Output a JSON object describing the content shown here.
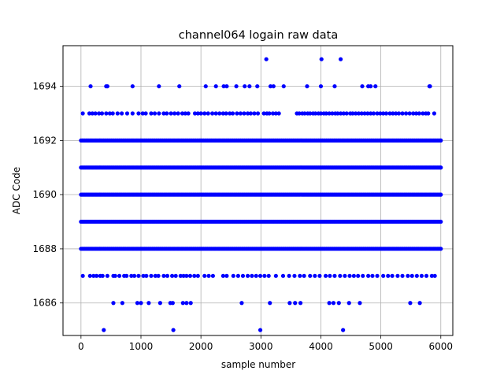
{
  "chart_data": {
    "type": "scatter",
    "title": "channel064 logain raw data",
    "xlabel": "sample number",
    "ylabel": "ADC Code",
    "xlim": [
      -300,
      6200
    ],
    "ylim": [
      1684.8,
      1695.5
    ],
    "xticks": [
      0,
      1000,
      2000,
      3000,
      4000,
      5000,
      6000
    ],
    "xtick_labels": [
      "0",
      "1000",
      "2000",
      "3000",
      "4000",
      "5000",
      "6000"
    ],
    "yticks": [
      1686,
      1688,
      1690,
      1692,
      1694
    ],
    "ytick_labels": [
      "1686",
      "1688",
      "1690",
      "1692",
      "1694"
    ],
    "grid": true,
    "marker_color": "#0000ff",
    "series": [
      {
        "points": [
          {
            "y": 1685,
            "x": [
              380,
              1540,
              2990,
              4370
            ]
          },
          {
            "y": 1686,
            "x": [
              540,
              690,
              940,
              1000,
              1130,
              1320,
              1490,
              1530,
              1700,
              1760,
              1830,
              2680,
              3150,
              3480,
              3570,
              3660,
              4140,
              4210,
              4300,
              4470,
              4650,
              5490,
              5650
            ]
          },
          {
            "y": 1687,
            "x": [
              30,
              150,
              210,
              260,
              320,
              360,
              440,
              540,
              570,
              640,
              720,
              760,
              840,
              890,
              960,
              1040,
              1090,
              1170,
              1240,
              1290,
              1380,
              1440,
              1520,
              1580,
              1660,
              1710,
              1760,
              1820,
              1890,
              1950,
              2060,
              2130,
              2200,
              2370,
              2430,
              2540,
              2620,
              2700,
              2780,
              2850,
              2920,
              2990,
              3060,
              3130,
              3250,
              3370,
              3470,
              3560,
              3650,
              3720,
              3820,
              3900,
              3980,
              4080,
              4150,
              4230,
              4320,
              4400,
              4480,
              4550,
              4620,
              4700,
              4790,
              4860,
              4940,
              5040,
              5120,
              5190,
              5280,
              5360,
              5450,
              5520,
              5600,
              5680,
              5760,
              5850,
              5900
            ]
          },
          {
            "y": 1688,
            "x": [
              0,
              6000
            ],
            "dense": true
          },
          {
            "y": 1689,
            "x": [
              0,
              6000
            ],
            "dense": true
          },
          {
            "y": 1690,
            "x": [
              0,
              6000
            ],
            "dense": true
          },
          {
            "y": 1691,
            "x": [
              0,
              6000
            ],
            "dense": true
          },
          {
            "y": 1692,
            "x": [
              0,
              6000
            ],
            "dense": true
          },
          {
            "y": 1693,
            "x": [
              30,
              140,
              190,
              240,
              300,
              350,
              420,
              480,
              530,
              610,
              680,
              770,
              860,
              960,
              1030,
              1080,
              1170,
              1230,
              1300,
              1380,
              1430,
              1500,
              1560,
              1620,
              1690,
              1740,
              1790,
              1900,
              1950,
              2000,
              2060,
              2120,
              2190,
              2250,
              2310,
              2370,
              2420,
              2480,
              2530,
              2600,
              2660,
              2720,
              2780,
              2830,
              2890,
              2950,
              3050,
              3100,
              3140,
              3200,
              3250,
              3300,
              3600,
              3640,
              3690,
              3730,
              3780,
              3820,
              3870,
              3910,
              3960,
              4000,
              4050,
              4090,
              4140,
              4190,
              4240,
              4280,
              4330,
              4380,
              4430,
              4490,
              4530,
              4580,
              4630,
              4680,
              4730,
              4780,
              4830,
              4880,
              4940,
              4990,
              5040,
              5090,
              5150,
              5200,
              5250,
              5300,
              5360,
              5420,
              5480,
              5540,
              5590,
              5640,
              5700,
              5750,
              5790,
              5890
            ]
          },
          {
            "y": 1694,
            "x": [
              160,
              420,
              440,
              860,
              1300,
              1640,
              2080,
              2250,
              2380,
              2430,
              2590,
              2730,
              2810,
              2940,
              3160,
              3210,
              3380,
              3770,
              4000,
              4230,
              4690,
              4790,
              4830,
              4910,
              5810,
              5820
            ]
          },
          {
            "y": 1695,
            "x": [
              3090,
              4010,
              4330
            ]
          }
        ]
      }
    ]
  }
}
